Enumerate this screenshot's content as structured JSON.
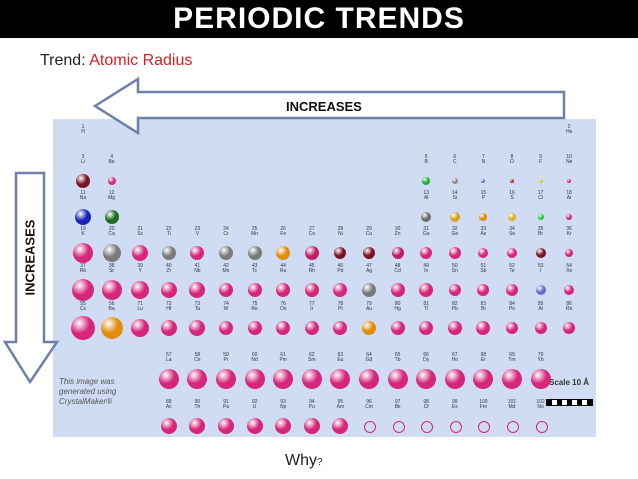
{
  "title": "PERIODIC TRENDS",
  "trend": {
    "label": "Trend: ",
    "value": "Atomic Radius"
  },
  "arrows": {
    "horizontal": "INCREASES",
    "vertical": "INCREASES"
  },
  "credit": "This image was generated using CrystalMaker®",
  "scale": "Scale 10 Å",
  "question": "Why",
  "question_mark": "?",
  "colors": {
    "title_bg": "#000000",
    "accent": "#d62020",
    "panel": "#cfdcf3",
    "main_group": "#d6267a",
    "transition": "#c01e62",
    "alkali_blue": "#1822b8",
    "alkaline_green": "#1e6b22",
    "metal_gray": "#7a7a7a",
    "gold": "#e08e0a"
  },
  "elements": [
    {
      "n": "1",
      "s": "H",
      "c": 0,
      "p": 1,
      "r": 0,
      "col": "#aaaaaa"
    },
    {
      "n": "2",
      "s": "He",
      "c": 17,
      "p": 1,
      "r": 0,
      "col": "#aaaaaa"
    },
    {
      "n": "3",
      "s": "Li",
      "c": 0,
      "p": 2,
      "r": 7,
      "col": "#7a1422"
    },
    {
      "n": "4",
      "s": "Be",
      "c": 1,
      "p": 2,
      "r": 4,
      "col": "#d6267a"
    },
    {
      "n": "5",
      "s": "B",
      "c": 12,
      "p": 2,
      "r": 4,
      "col": "#19b232"
    },
    {
      "n": "6",
      "s": "C",
      "c": 13,
      "p": 2,
      "r": 3,
      "col": "#8a8a8a"
    },
    {
      "n": "7",
      "s": "N",
      "c": 14,
      "p": 2,
      "r": 2,
      "col": "#6a6ac8"
    },
    {
      "n": "8",
      "s": "O",
      "c": 15,
      "p": 2,
      "r": 2,
      "col": "#cc2222"
    },
    {
      "n": "9",
      "s": "F",
      "c": 16,
      "p": 2,
      "r": 2,
      "col": "#cccc22"
    },
    {
      "n": "10",
      "s": "Ne",
      "c": 17,
      "p": 2,
      "r": 2,
      "col": "#d6267a"
    },
    {
      "n": "11",
      "s": "Na",
      "c": 0,
      "p": 3,
      "r": 8,
      "col": "#1822b8"
    },
    {
      "n": "12",
      "s": "Mg",
      "c": 1,
      "p": 3,
      "r": 7,
      "col": "#1e6b22"
    },
    {
      "n": "13",
      "s": "Al",
      "c": 12,
      "p": 3,
      "r": 5,
      "col": "#6a6a6a"
    },
    {
      "n": "14",
      "s": "Si",
      "c": 13,
      "p": 3,
      "r": 5,
      "col": "#d6a020"
    },
    {
      "n": "15",
      "s": "P",
      "c": 14,
      "p": 3,
      "r": 4,
      "col": "#e08e0a"
    },
    {
      "n": "16",
      "s": "S",
      "c": 15,
      "p": 3,
      "r": 4,
      "col": "#e0b020"
    },
    {
      "n": "17",
      "s": "Cl",
      "c": 16,
      "p": 3,
      "r": 3,
      "col": "#22cc22"
    },
    {
      "n": "18",
      "s": "Ar",
      "c": 17,
      "p": 3,
      "r": 3,
      "col": "#d6267a"
    },
    {
      "n": "19",
      "s": "K",
      "c": 0,
      "p": 4,
      "r": 10,
      "col": "#d6267a"
    },
    {
      "n": "20",
      "s": "Ca",
      "c": 1,
      "p": 4,
      "r": 9,
      "col": "#7a7a7a"
    },
    {
      "n": "21",
      "s": "Sc",
      "c": 2,
      "p": 4,
      "r": 8,
      "col": "#d6267a"
    },
    {
      "n": "22",
      "s": "Ti",
      "c": 3,
      "p": 4,
      "r": 7,
      "col": "#7a7a7a"
    },
    {
      "n": "23",
      "s": "V",
      "c": 4,
      "p": 4,
      "r": 7,
      "col": "#d6267a"
    },
    {
      "n": "24",
      "s": "Cr",
      "c": 5,
      "p": 4,
      "r": 7,
      "col": "#7a7a7a"
    },
    {
      "n": "25",
      "s": "Mn",
      "c": 6,
      "p": 4,
      "r": 7,
      "col": "#7a7a7a"
    },
    {
      "n": "26",
      "s": "Fe",
      "c": 7,
      "p": 4,
      "r": 7,
      "col": "#e08e0a"
    },
    {
      "n": "27",
      "s": "Co",
      "c": 8,
      "p": 4,
      "r": 7,
      "col": "#c01e62"
    },
    {
      "n": "28",
      "s": "Ni",
      "c": 9,
      "p": 4,
      "r": 6,
      "col": "#7a1422"
    },
    {
      "n": "29",
      "s": "Cu",
      "c": 10,
      "p": 4,
      "r": 6,
      "col": "#7a1422"
    },
    {
      "n": "30",
      "s": "Zn",
      "c": 11,
      "p": 4,
      "r": 6,
      "col": "#c01e62"
    },
    {
      "n": "31",
      "s": "Ga",
      "c": 12,
      "p": 4,
      "r": 6,
      "col": "#d6267a"
    },
    {
      "n": "32",
      "s": "Ge",
      "c": 13,
      "p": 4,
      "r": 6,
      "col": "#d6267a"
    },
    {
      "n": "33",
      "s": "As",
      "c": 14,
      "p": 4,
      "r": 5,
      "col": "#d6267a"
    },
    {
      "n": "34",
      "s": "Se",
      "c": 15,
      "p": 4,
      "r": 5,
      "col": "#d6267a"
    },
    {
      "n": "35",
      "s": "Br",
      "c": 16,
      "p": 4,
      "r": 5,
      "col": "#7a1422"
    },
    {
      "n": "36",
      "s": "Kr",
      "c": 17,
      "p": 4,
      "r": 4,
      "col": "#d6267a"
    },
    {
      "n": "37",
      "s": "Rb",
      "c": 0,
      "p": 5,
      "r": 11,
      "col": "#d6267a"
    },
    {
      "n": "38",
      "s": "Sr",
      "c": 1,
      "p": 5,
      "r": 10,
      "col": "#d6267a"
    },
    {
      "n": "39",
      "s": "Y",
      "c": 2,
      "p": 5,
      "r": 9,
      "col": "#d6267a"
    },
    {
      "n": "40",
      "s": "Zr",
      "c": 3,
      "p": 5,
      "r": 8,
      "col": "#d6267a"
    },
    {
      "n": "41",
      "s": "Nb",
      "c": 4,
      "p": 5,
      "r": 8,
      "col": "#d6267a"
    },
    {
      "n": "42",
      "s": "Mo",
      "c": 5,
      "p": 5,
      "r": 7,
      "col": "#d6267a"
    },
    {
      "n": "43",
      "s": "Tc",
      "c": 6,
      "p": 5,
      "r": 7,
      "col": "#d6267a"
    },
    {
      "n": "44",
      "s": "Ru",
      "c": 7,
      "p": 5,
      "r": 7,
      "col": "#d6267a"
    },
    {
      "n": "45",
      "s": "Rh",
      "c": 8,
      "p": 5,
      "r": 7,
      "col": "#d6267a"
    },
    {
      "n": "46",
      "s": "Pd",
      "c": 9,
      "p": 5,
      "r": 7,
      "col": "#d6267a"
    },
    {
      "n": "47",
      "s": "Ag",
      "c": 10,
      "p": 5,
      "r": 7,
      "col": "#7a7a7a"
    },
    {
      "n": "48",
      "s": "Cd",
      "c": 11,
      "p": 5,
      "r": 7,
      "col": "#d6267a"
    },
    {
      "n": "49",
      "s": "In",
      "c": 12,
      "p": 5,
      "r": 7,
      "col": "#d6267a"
    },
    {
      "n": "50",
      "s": "Sn",
      "c": 13,
      "p": 5,
      "r": 6,
      "col": "#d6267a"
    },
    {
      "n": "51",
      "s": "Sb",
      "c": 14,
      "p": 5,
      "r": 6,
      "col": "#d6267a"
    },
    {
      "n": "52",
      "s": "Te",
      "c": 15,
      "p": 5,
      "r": 6,
      "col": "#d6267a"
    },
    {
      "n": "53",
      "s": "I",
      "c": 16,
      "p": 5,
      "r": 5,
      "col": "#6a6ac8"
    },
    {
      "n": "54",
      "s": "Xe",
      "c": 17,
      "p": 5,
      "r": 5,
      "col": "#d6267a"
    },
    {
      "n": "55",
      "s": "Cs",
      "c": 0,
      "p": 6,
      "r": 12,
      "col": "#d6267a"
    },
    {
      "n": "56",
      "s": "Ba",
      "c": 1,
      "p": 6,
      "r": 11,
      "col": "#e08e0a"
    },
    {
      "n": "71",
      "s": "Lu",
      "c": 2,
      "p": 6,
      "r": 9,
      "col": "#d6267a"
    },
    {
      "n": "72",
      "s": "Hf",
      "c": 3,
      "p": 6,
      "r": 8,
      "col": "#d6267a"
    },
    {
      "n": "73",
      "s": "Ta",
      "c": 4,
      "p": 6,
      "r": 8,
      "col": "#d6267a"
    },
    {
      "n": "74",
      "s": "W",
      "c": 5,
      "p": 6,
      "r": 7,
      "col": "#d6267a"
    },
    {
      "n": "75",
      "s": "Re",
      "c": 6,
      "p": 6,
      "r": 7,
      "col": "#d6267a"
    },
    {
      "n": "76",
      "s": "Os",
      "c": 7,
      "p": 6,
      "r": 7,
      "col": "#d6267a"
    },
    {
      "n": "77",
      "s": "Ir",
      "c": 8,
      "p": 6,
      "r": 7,
      "col": "#d6267a"
    },
    {
      "n": "78",
      "s": "Pt",
      "c": 9,
      "p": 6,
      "r": 7,
      "col": "#d6267a"
    },
    {
      "n": "79",
      "s": "Au",
      "c": 10,
      "p": 6,
      "r": 7,
      "col": "#e08e0a"
    },
    {
      "n": "80",
      "s": "Hg",
      "c": 11,
      "p": 6,
      "r": 7,
      "col": "#d6267a"
    },
    {
      "n": "81",
      "s": "Tl",
      "c": 12,
      "p": 6,
      "r": 7,
      "col": "#d6267a"
    },
    {
      "n": "82",
      "s": "Pb",
      "c": 13,
      "p": 6,
      "r": 7,
      "col": "#d6267a"
    },
    {
      "n": "83",
      "s": "Bi",
      "c": 14,
      "p": 6,
      "r": 7,
      "col": "#d6267a"
    },
    {
      "n": "84",
      "s": "Po",
      "c": 15,
      "p": 6,
      "r": 6,
      "col": "#d6267a"
    },
    {
      "n": "85",
      "s": "At",
      "c": 16,
      "p": 6,
      "r": 6,
      "col": "#d6267a"
    },
    {
      "n": "86",
      "s": "Rn",
      "c": 17,
      "p": 6,
      "r": 6,
      "col": "#d6267a"
    },
    {
      "n": "57",
      "s": "La",
      "c": 3,
      "p": 8,
      "r": 10,
      "col": "#d6267a"
    },
    {
      "n": "58",
      "s": "Ce",
      "c": 4,
      "p": 8,
      "r": 10,
      "col": "#d6267a"
    },
    {
      "n": "59",
      "s": "Pr",
      "c": 5,
      "p": 8,
      "r": 10,
      "col": "#d6267a"
    },
    {
      "n": "60",
      "s": "Nd",
      "c": 6,
      "p": 8,
      "r": 10,
      "col": "#d6267a"
    },
    {
      "n": "61",
      "s": "Pm",
      "c": 7,
      "p": 8,
      "r": 10,
      "col": "#d6267a"
    },
    {
      "n": "62",
      "s": "Sm",
      "c": 8,
      "p": 8,
      "r": 10,
      "col": "#d6267a"
    },
    {
      "n": "63",
      "s": "Eu",
      "c": 9,
      "p": 8,
      "r": 10,
      "col": "#d6267a"
    },
    {
      "n": "64",
      "s": "Gd",
      "c": 10,
      "p": 8,
      "r": 10,
      "col": "#d6267a"
    },
    {
      "n": "65",
      "s": "Tb",
      "c": 11,
      "p": 8,
      "r": 10,
      "col": "#d6267a"
    },
    {
      "n": "66",
      "s": "Dy",
      "c": 12,
      "p": 8,
      "r": 10,
      "col": "#d6267a"
    },
    {
      "n": "67",
      "s": "Ho",
      "c": 13,
      "p": 8,
      "r": 10,
      "col": "#d6267a"
    },
    {
      "n": "68",
      "s": "Er",
      "c": 14,
      "p": 8,
      "r": 10,
      "col": "#d6267a"
    },
    {
      "n": "69",
      "s": "Tm",
      "c": 15,
      "p": 8,
      "r": 10,
      "col": "#d6267a"
    },
    {
      "n": "70",
      "s": "Yb",
      "c": 16,
      "p": 8,
      "r": 10,
      "col": "#d6267a"
    },
    {
      "n": "89",
      "s": "Ac",
      "c": 3,
      "p": 9,
      "r": 8,
      "col": "#d6267a"
    },
    {
      "n": "90",
      "s": "Th",
      "c": 4,
      "p": 9,
      "r": 8,
      "col": "#d6267a"
    },
    {
      "n": "91",
      "s": "Pa",
      "c": 5,
      "p": 9,
      "r": 8,
      "col": "#d6267a"
    },
    {
      "n": "92",
      "s": "U",
      "c": 6,
      "p": 9,
      "r": 8,
      "col": "#d6267a"
    },
    {
      "n": "93",
      "s": "Np",
      "c": 7,
      "p": 9,
      "r": 8,
      "col": "#d6267a"
    },
    {
      "n": "94",
      "s": "Pu",
      "c": 8,
      "p": 9,
      "r": 8,
      "col": "#d6267a"
    },
    {
      "n": "95",
      "s": "Am",
      "c": 9,
      "p": 9,
      "r": 8,
      "col": "#d6267a"
    },
    {
      "n": "96",
      "s": "Cm",
      "c": 10,
      "p": 9,
      "r": 5,
      "col": "none"
    },
    {
      "n": "97",
      "s": "Bk",
      "c": 11,
      "p": 9,
      "r": 5,
      "col": "none"
    },
    {
      "n": "98",
      "s": "Cf",
      "c": 12,
      "p": 9,
      "r": 5,
      "col": "none"
    },
    {
      "n": "99",
      "s": "Es",
      "c": 13,
      "p": 9,
      "r": 5,
      "col": "none"
    },
    {
      "n": "100",
      "s": "Fm",
      "c": 14,
      "p": 9,
      "r": 5,
      "col": "none"
    },
    {
      "n": "101",
      "s": "Md",
      "c": 15,
      "p": 9,
      "r": 5,
      "col": "none"
    },
    {
      "n": "102",
      "s": "No",
      "c": 16,
      "p": 9,
      "r": 5,
      "col": "none"
    }
  ]
}
